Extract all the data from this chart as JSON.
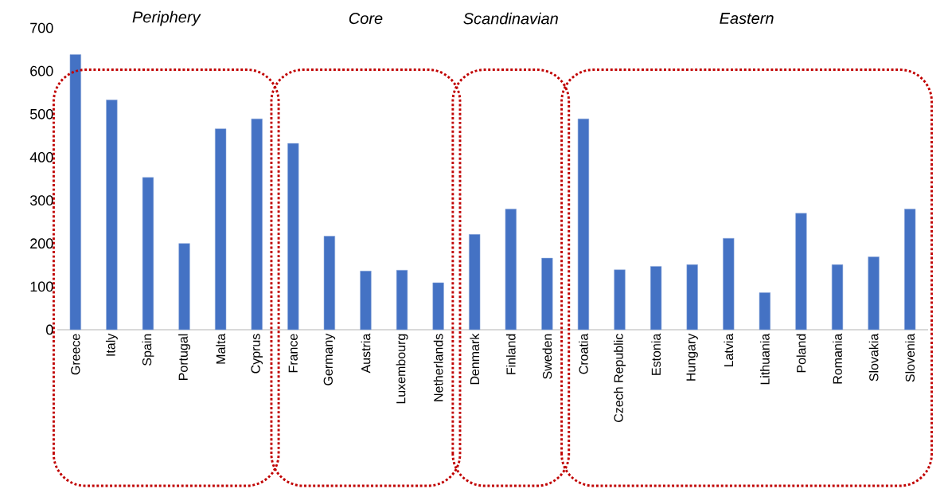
{
  "chart_data": {
    "type": "bar",
    "categories": [
      "Greece",
      "Italy",
      "Spain",
      "Portugal",
      "Malta",
      "Cyprus",
      "France",
      "Germany",
      "Austria",
      "Luxembourg",
      "Netherlands",
      "Denmark",
      "Finland",
      "Sweden",
      "Croatia",
      "Czech Republic",
      "Estonia",
      "Hungary",
      "Latvia",
      "Lithuania",
      "Poland",
      "Romania",
      "Slovakia",
      "Slovenia"
    ],
    "values": [
      638,
      533,
      353,
      200,
      466,
      489,
      432,
      217,
      136,
      138,
      109,
      221,
      280,
      166,
      489,
      139,
      147,
      151,
      212,
      86,
      270,
      151,
      169,
      280
    ],
    "color": "#4472c4",
    "ylim": [
      0,
      700
    ],
    "yticks": [
      0,
      100,
      200,
      300,
      400,
      500,
      600,
      700
    ],
    "annotations": [
      "Periphery",
      "Core",
      "Scandinavian",
      "Eastern"
    ]
  }
}
